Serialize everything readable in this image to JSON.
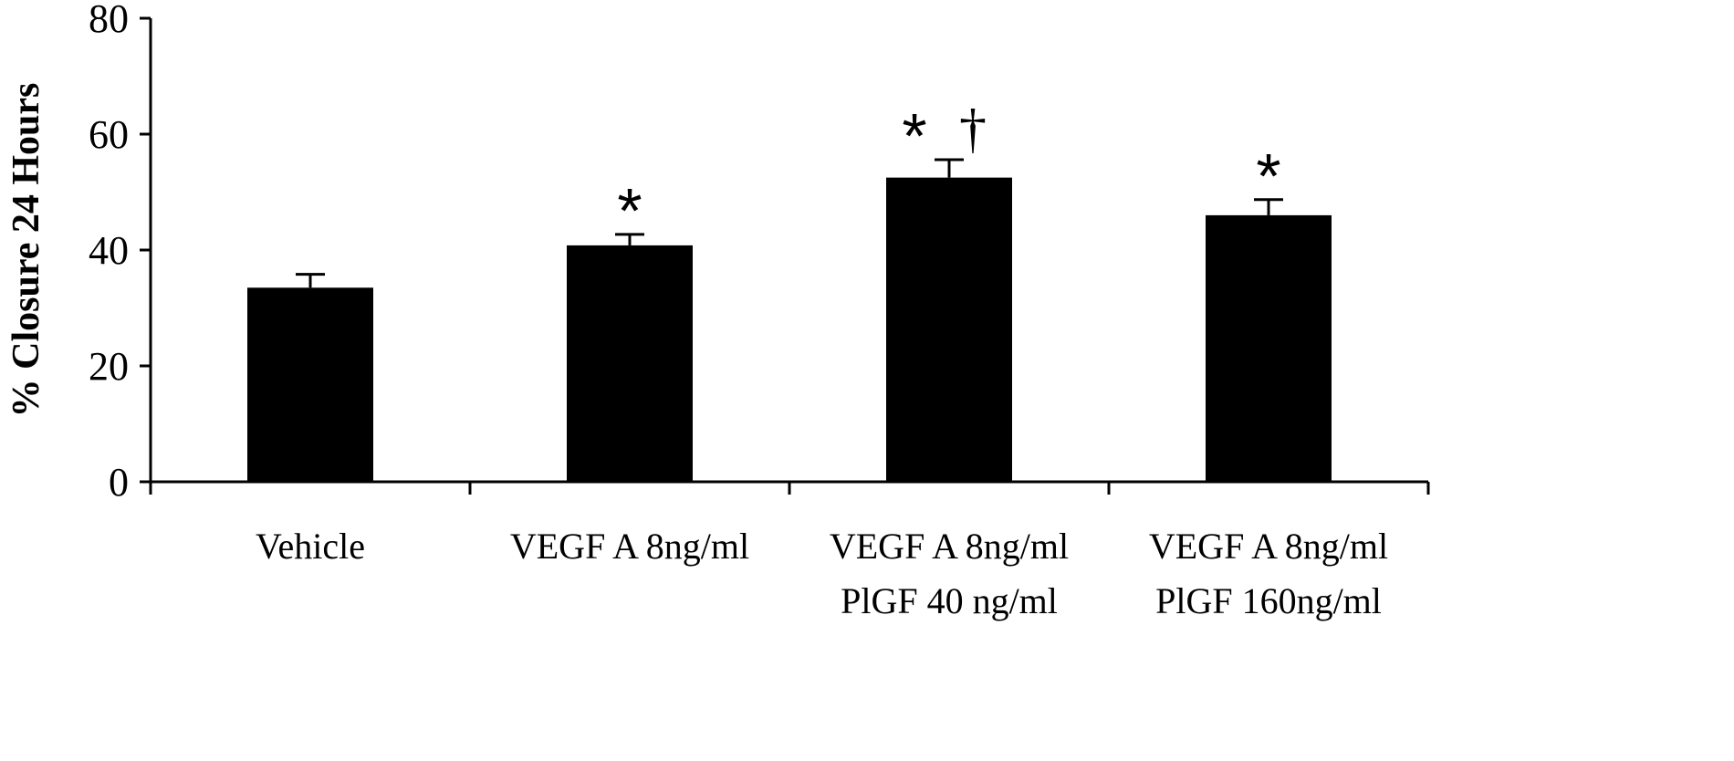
{
  "chart_data": {
    "type": "bar",
    "title": "",
    "xlabel": "",
    "ylabel": "% Closure 24 Hours",
    "ylim": [
      0,
      80
    ],
    "yticks": [
      "0",
      "20",
      "40",
      "60",
      "80"
    ],
    "grid": false,
    "categories": [
      [
        "Vehicle"
      ],
      [
        "VEGF A 8ng/ml"
      ],
      [
        "VEGF A 8ng/ml",
        "PlGF 40 ng/ml"
      ],
      [
        "VEGF A 8ng/ml",
        "PlGF 160ng/ml"
      ]
    ],
    "values": [
      33.5,
      40.8,
      52.5,
      46.0
    ],
    "error": [
      2.3,
      1.9,
      3.1,
      2.7
    ],
    "annotations": [
      "",
      "*",
      "*",
      "*"
    ],
    "dagger": [
      "",
      "",
      "†",
      ""
    ],
    "bar_color": "#000000"
  }
}
